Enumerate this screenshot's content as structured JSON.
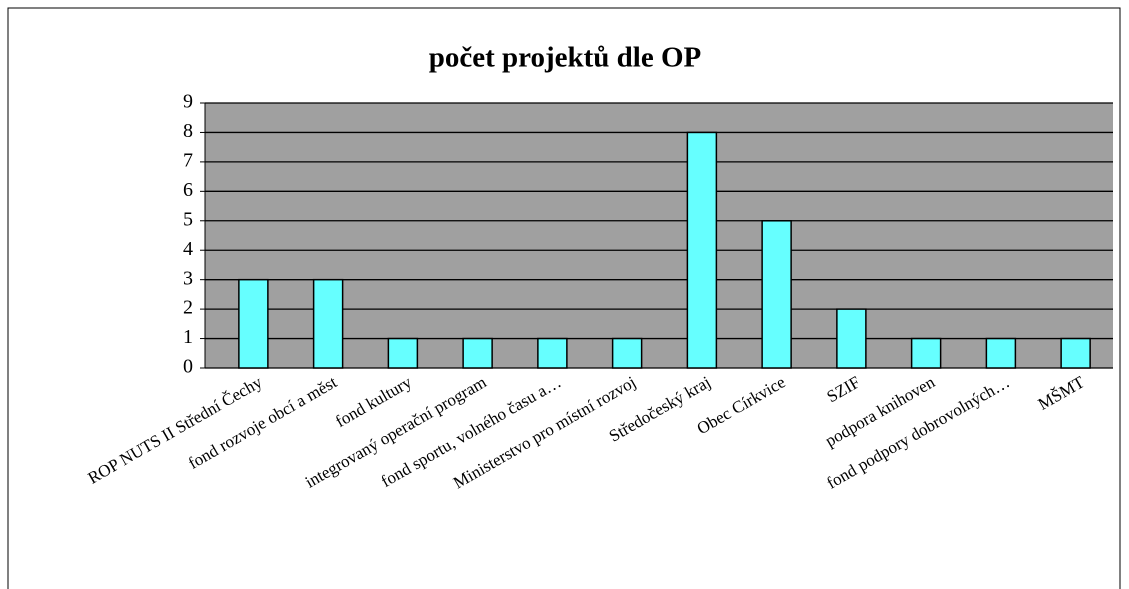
{
  "chart_data": {
    "type": "bar",
    "title": "počet projektů dle OP",
    "categories": [
      "ROP NUTS II Střední Čechy",
      "fond rozvoje obcí a měst",
      "fond kultury",
      "integrovaný operační program",
      "fond sportu, volného času a…",
      "Ministerstvo pro místní rozvoj",
      "Středočeský kraj",
      "Obec Církvice",
      "SZIF",
      "podpora knihoven",
      "fond podpory dobrovolných…",
      "MŠMT"
    ],
    "values": [
      3,
      3,
      1,
      1,
      1,
      1,
      8,
      5,
      2,
      1,
      1,
      1
    ],
    "color": "#66ffff",
    "ylim": [
      0,
      9
    ],
    "yticks": [
      0,
      1,
      2,
      3,
      4,
      5,
      6,
      7,
      8,
      9
    ],
    "grid": true
  }
}
